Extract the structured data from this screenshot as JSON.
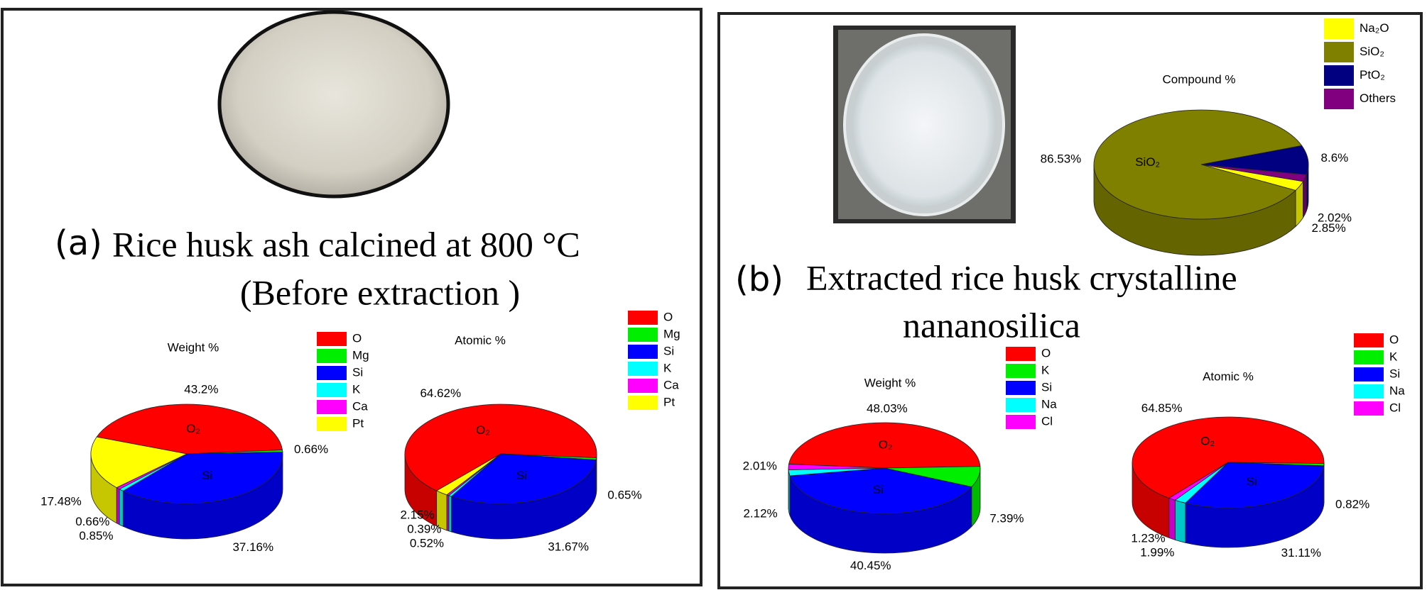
{
  "panels": [
    {
      "label": "(a)",
      "caption": [
        "Rice husk ash calcined at 800 °C",
        "(Before extraction )"
      ]
    },
    {
      "label": "(b)",
      "caption": [
        "Extracted rice husk crystalline",
        "nananosilica"
      ]
    }
  ],
  "chart_data": [
    {
      "type": "pie",
      "title": "Weight %",
      "categories": [
        "O",
        "Mg",
        "Si",
        "K",
        "Ca",
        "Pt"
      ],
      "values": [
        43.2,
        0.66,
        37.16,
        0.85,
        0.66,
        17.48
      ],
      "value_labels": [
        "43.2%",
        "0.66%",
        "37.16%",
        "0.85%",
        "0.66%",
        "17.48%"
      ],
      "inner_labels": [
        "O₂",
        null,
        "Si",
        null,
        null,
        null
      ],
      "colors": [
        "#ff0000",
        "#00ee00",
        "#0000ff",
        "#00ffff",
        "#ff00ff",
        "#ffff00"
      ]
    },
    {
      "type": "pie",
      "title": "Atomic %",
      "categories": [
        "O",
        "Mg",
        "Si",
        "K",
        "Ca",
        "Pt"
      ],
      "values": [
        64.62,
        0.65,
        31.67,
        0.52,
        0.39,
        2.15
      ],
      "value_labels": [
        "64.62%",
        "0.65%",
        "31.67%",
        "0.52%",
        "0.39%",
        "2.15%"
      ],
      "inner_labels": [
        "O₂",
        null,
        "Si",
        null,
        null,
        null
      ],
      "colors": [
        "#ff0000",
        "#00ee00",
        "#0000ff",
        "#00ffff",
        "#ff00ff",
        "#ffff00"
      ]
    },
    {
      "type": "pie",
      "title": "Compound %",
      "categories": [
        "Na₂O",
        "SiO₂",
        "PtO₂",
        "Others"
      ],
      "values": [
        2.85,
        86.53,
        8.6,
        2.02
      ],
      "value_labels": [
        "2.85%",
        "86.53%",
        "8.6%",
        "2.02%"
      ],
      "inner_labels": [
        null,
        "SiO₂",
        null,
        null
      ],
      "colors": [
        "#ffff00",
        "#808000",
        "#000080",
        "#800080"
      ]
    },
    {
      "type": "pie",
      "title": "Weight %",
      "categories": [
        "O",
        "K",
        "Si",
        "Na",
        "Cl"
      ],
      "values": [
        48.03,
        7.39,
        40.45,
        2.12,
        2.01
      ],
      "value_labels": [
        "48.03%",
        "7.39%",
        "40.45%",
        "2.12%",
        "2.01%"
      ],
      "inner_labels": [
        "O₂",
        null,
        "Si",
        null,
        null
      ],
      "colors": [
        "#ff0000",
        "#00ee00",
        "#0000ff",
        "#00ffff",
        "#ff00ff"
      ]
    },
    {
      "type": "pie",
      "title": "Atomic %",
      "categories": [
        "O",
        "K",
        "Si",
        "Na",
        "Cl"
      ],
      "values": [
        64.85,
        0.82,
        31.11,
        1.99,
        1.23
      ],
      "value_labels": [
        "64.85%",
        "0.82%",
        "31.11%",
        "1.99%",
        "1.23%"
      ],
      "inner_labels": [
        "O₂",
        null,
        "Si",
        null,
        null
      ],
      "colors": [
        "#ff0000",
        "#00ee00",
        "#0000ff",
        "#00ffff",
        "#ff00ff"
      ]
    }
  ]
}
